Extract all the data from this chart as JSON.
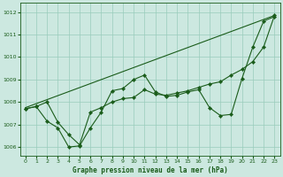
{
  "title": "Graphe pression niveau de la mer (hPa)",
  "bg_color": "#cce8e0",
  "grid_color": "#99ccbb",
  "line_color": "#1a5c1a",
  "xlim": [
    -0.5,
    23.5
  ],
  "ylim": [
    1005.6,
    1012.4
  ],
  "xticks": [
    0,
    1,
    2,
    3,
    4,
    5,
    6,
    7,
    8,
    9,
    10,
    11,
    12,
    13,
    14,
    15,
    16,
    17,
    18,
    19,
    20,
    21,
    22,
    23
  ],
  "yticks": [
    1006,
    1007,
    1008,
    1009,
    1010,
    1011,
    1012
  ],
  "trend_x": [
    0,
    23
  ],
  "trend_y": [
    1007.75,
    1011.85
  ],
  "series1_x": [
    0,
    1,
    2,
    3,
    4,
    5,
    6,
    7,
    8,
    9,
    10,
    11,
    12,
    13,
    14,
    15,
    16,
    17,
    18,
    19,
    20,
    21,
    22,
    23
  ],
  "series1_y": [
    1007.7,
    1007.8,
    1007.15,
    1006.85,
    1006.0,
    1006.05,
    1006.85,
    1007.55,
    1008.5,
    1008.6,
    1009.0,
    1009.2,
    1008.45,
    1008.25,
    1008.3,
    1008.45,
    1008.55,
    1007.75,
    1007.4,
    1007.45,
    1009.05,
    1010.45,
    1011.6,
    1011.8
  ],
  "series2_x": [
    0,
    1,
    2,
    3,
    4,
    5,
    6,
    7,
    8,
    9,
    10,
    11,
    12,
    13,
    14,
    15,
    16,
    17,
    18,
    19,
    20,
    21,
    22,
    23
  ],
  "series2_y": [
    1007.7,
    1007.8,
    1008.0,
    1007.1,
    1006.55,
    1006.1,
    1007.55,
    1007.75,
    1008.0,
    1008.15,
    1008.2,
    1008.55,
    1008.35,
    1008.3,
    1008.4,
    1008.5,
    1008.65,
    1008.8,
    1008.9,
    1009.2,
    1009.45,
    1009.8,
    1010.45,
    1011.85
  ]
}
